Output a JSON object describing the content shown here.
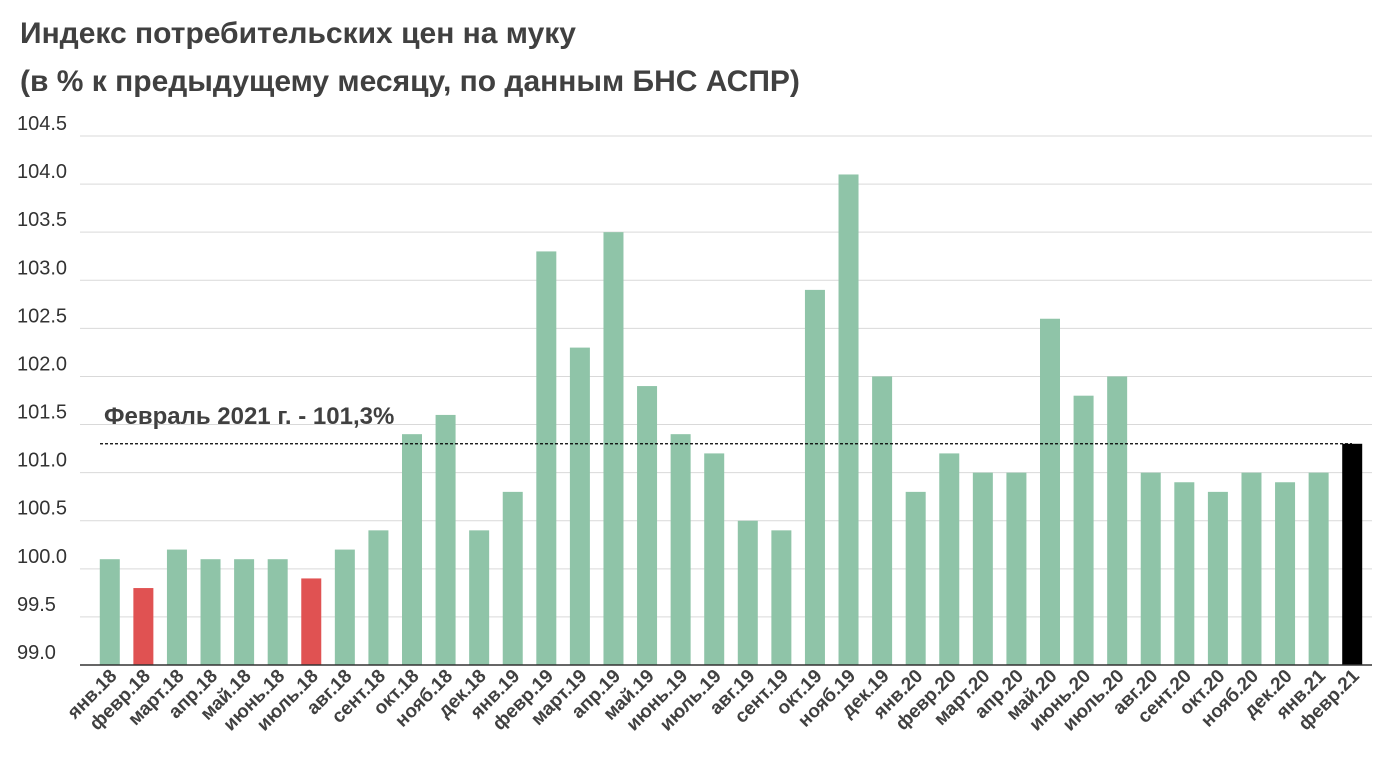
{
  "chart_data": {
    "type": "bar",
    "title": "Индекс потребительских цен на муку",
    "subtitle": "(в % к предыдущему месяцу, по данным БНС АСПР)",
    "xlabel": "",
    "ylabel": "",
    "ylim": [
      99.0,
      104.5
    ],
    "yticks": [
      "99.0",
      "99.5",
      "100.0",
      "100.5",
      "101.0",
      "101.5",
      "102.0",
      "102.5",
      "103.0",
      "103.5",
      "104.0",
      "104.5"
    ],
    "grid": true,
    "categories": [
      "янв.18",
      "февр.18",
      "март.18",
      "апр.18",
      "май.18",
      "июнь.18",
      "июль.18",
      "авг.18",
      "сент.18",
      "окт.18",
      "нояб.18",
      "дек.18",
      "янв.19",
      "февр.19",
      "март.19",
      "апр.19",
      "май.19",
      "июнь.19",
      "июль.19",
      "авг.19",
      "сент.19",
      "окт.19",
      "нояб.19",
      "дек.19",
      "янв.20",
      "февр.20",
      "март.20",
      "апр.20",
      "май.20",
      "июнь.20",
      "июль.20",
      "авг.20",
      "сент.20",
      "окт.20",
      "нояб.20",
      "дек.20",
      "янв.21",
      "февр.21"
    ],
    "values": [
      100.1,
      99.8,
      100.2,
      100.1,
      100.1,
      100.1,
      99.9,
      100.2,
      100.4,
      101.4,
      101.6,
      100.4,
      100.8,
      103.3,
      102.3,
      103.5,
      101.9,
      101.4,
      101.2,
      100.5,
      100.4,
      102.9,
      104.1,
      102.0,
      100.8,
      101.2,
      101.0,
      101.0,
      102.6,
      101.8,
      102.0,
      101.0,
      100.9,
      100.8,
      101.0,
      100.9,
      101.0,
      101.3
    ],
    "colors": {
      "default": "#8fc4a8",
      "below_100": "#e05252",
      "highlight": "#000000",
      "grid": "#d9d9d9",
      "axis": "#333333",
      "reference_line": "#000000"
    },
    "reference_line": {
      "value": 101.3,
      "label": "Февраль 2021 г. - 101,3%"
    }
  }
}
